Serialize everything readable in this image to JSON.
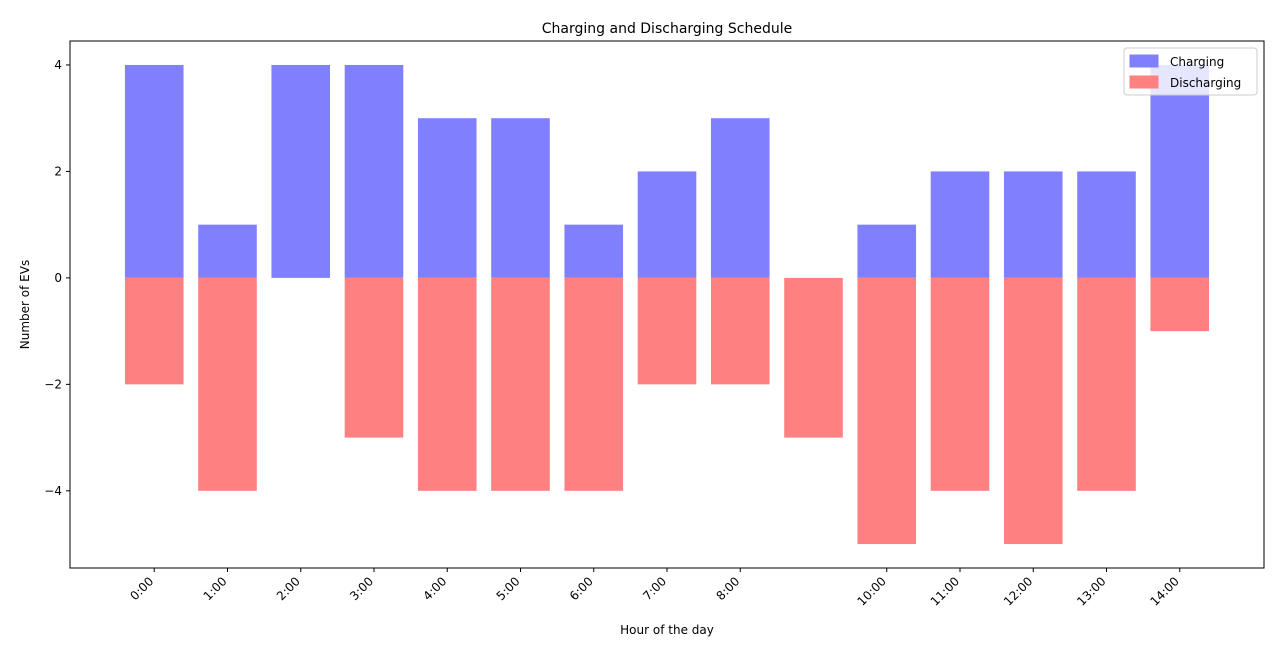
{
  "chart_data": {
    "type": "bar",
    "title": "Charging and Discharging Schedule",
    "xlabel": "Hour of the day",
    "ylabel": "Number of EVs",
    "x": [
      0,
      1,
      2,
      3,
      4,
      5,
      6,
      7,
      8,
      9,
      10,
      11,
      12,
      13,
      14
    ],
    "xtick_positions": [
      0,
      1,
      2,
      3,
      4,
      5,
      6,
      7,
      8,
      10,
      11,
      12,
      13,
      14
    ],
    "xtick_labels": [
      "0:00",
      "1:00",
      "2:00",
      "3:00",
      "4:00",
      "5:00",
      "6:00",
      "7:00",
      "8:00",
      "10:00",
      "11:00",
      "12:00",
      "13:00",
      "14:00"
    ],
    "yticks": [
      -4,
      -2,
      0,
      2,
      4
    ],
    "ytick_labels": [
      "−4",
      "−2",
      "0",
      "2",
      "4"
    ],
    "xlim": [
      -1.15,
      15.15
    ],
    "ylim": [
      -5.45,
      4.45
    ],
    "series": [
      {
        "name": "Charging",
        "color": "#8080ff",
        "values": [
          4,
          1,
          4,
          4,
          3,
          3,
          1,
          2,
          3,
          0,
          1,
          2,
          2,
          2,
          4
        ]
      },
      {
        "name": "Discharging",
        "color": "#ff8080",
        "values": [
          -2,
          -4,
          0,
          -3,
          -4,
          -4,
          -4,
          -2,
          -2,
          -3,
          -5,
          -4,
          -5,
          -4,
          -1
        ]
      }
    ],
    "legend_position": "top-right",
    "grid": false
  }
}
